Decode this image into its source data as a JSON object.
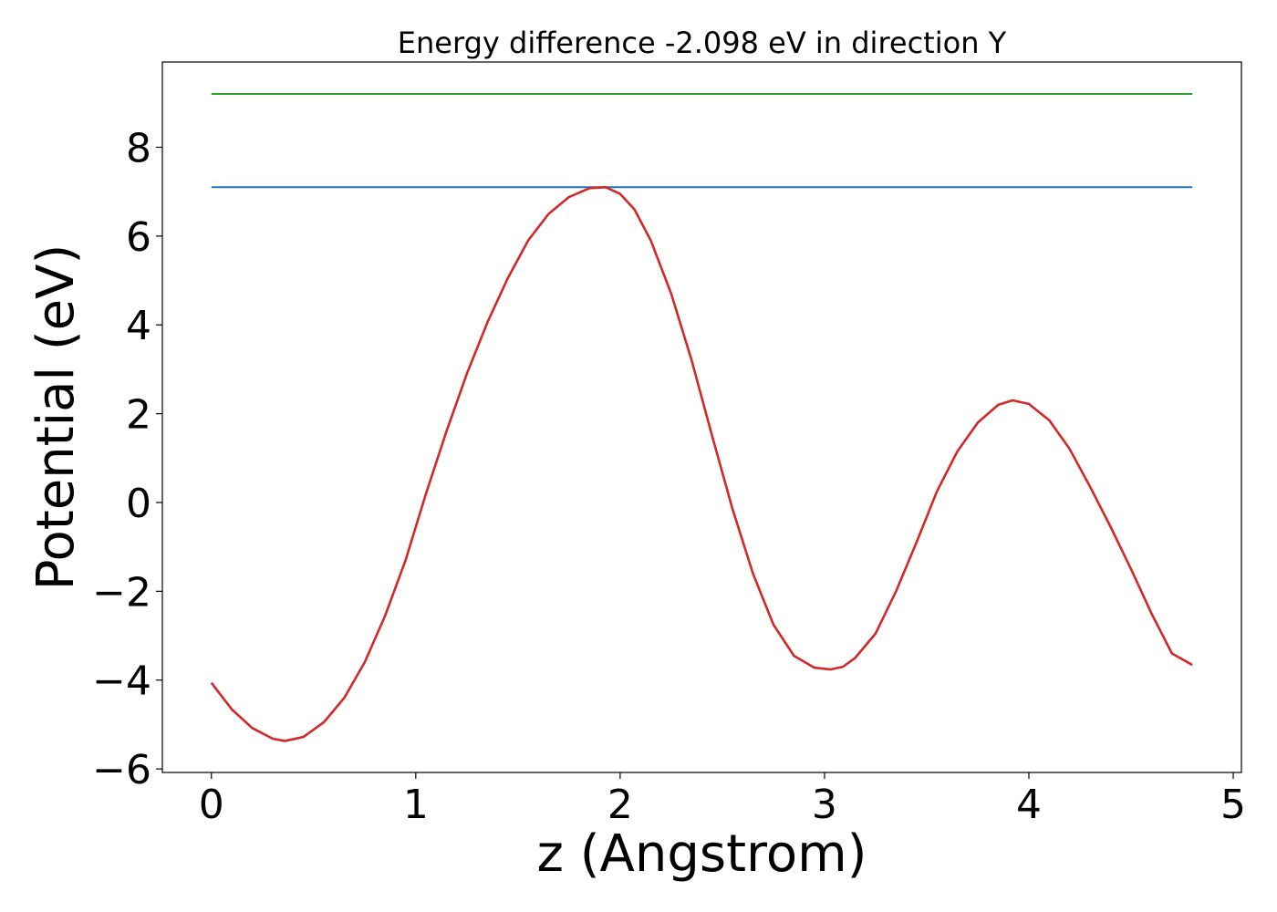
{
  "chart_data": {
    "type": "line",
    "title": "Energy difference -2.098 eV in direction Y",
    "xlabel": "z (Angstrom)",
    "ylabel": "Potential (eV)",
    "xlim": [
      -0.24,
      5.04
    ],
    "ylim": [
      -6.08,
      9.92
    ],
    "xticks": [
      0,
      1,
      2,
      3,
      4,
      5
    ],
    "yticks": [
      -6,
      -4,
      -2,
      0,
      2,
      4,
      6,
      8
    ],
    "grid": false,
    "legend": "none",
    "series": [
      {
        "color": "#d62728",
        "x": [
          0.0,
          0.1,
          0.2,
          0.3,
          0.36,
          0.45,
          0.55,
          0.65,
          0.75,
          0.85,
          0.95,
          1.05,
          1.15,
          1.25,
          1.35,
          1.45,
          1.55,
          1.65,
          1.75,
          1.85,
          1.93,
          2.0,
          2.07,
          2.15,
          2.25,
          2.35,
          2.45,
          2.55,
          2.65,
          2.75,
          2.85,
          2.95,
          3.03,
          3.09,
          3.15,
          3.25,
          3.35,
          3.45,
          3.55,
          3.65,
          3.75,
          3.85,
          3.92,
          4.0,
          4.1,
          4.2,
          4.3,
          4.4,
          4.5,
          4.6,
          4.7,
          4.8
        ],
        "y": [
          -4.06,
          -4.66,
          -5.08,
          -5.32,
          -5.37,
          -5.28,
          -4.95,
          -4.4,
          -3.6,
          -2.55,
          -1.3,
          0.2,
          1.6,
          2.9,
          4.05,
          5.05,
          5.9,
          6.5,
          6.88,
          7.08,
          7.1,
          6.95,
          6.6,
          5.9,
          4.7,
          3.2,
          1.5,
          -0.15,
          -1.6,
          -2.75,
          -3.45,
          -3.72,
          -3.76,
          -3.7,
          -3.5,
          -2.95,
          -2.0,
          -0.9,
          0.25,
          1.15,
          1.8,
          2.2,
          2.3,
          2.22,
          1.85,
          1.2,
          0.35,
          -0.55,
          -1.5,
          -2.5,
          -3.4,
          -3.66
        ]
      }
    ],
    "hlines": [
      {
        "y": 9.2,
        "x_start": 0,
        "x_end": 4.8,
        "color": "#2ca02c"
      },
      {
        "y": 7.1,
        "x_start": 0,
        "x_end": 4.8,
        "color": "#1f77b4"
      }
    ]
  }
}
